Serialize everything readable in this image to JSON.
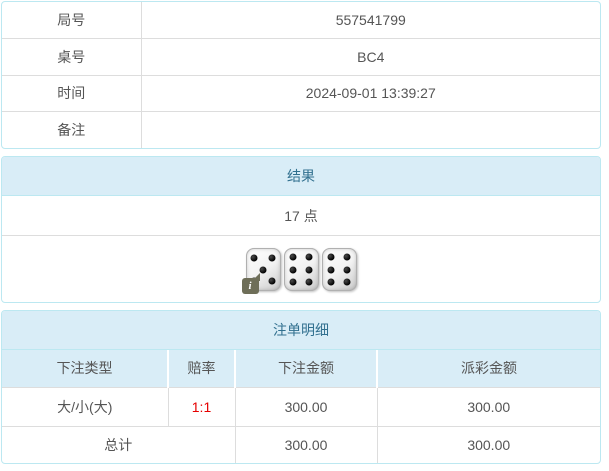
{
  "colors": {
    "panel_border": "#bce8f1",
    "heading_bg": "#d9edf7",
    "heading_text": "#31708f",
    "cell_border": "#dddddd",
    "body_text": "#555555",
    "odds_red": "#e60000",
    "info_badge_bg": "#6e6e58"
  },
  "info_table": {
    "rows": [
      {
        "label": "局号",
        "value": "557541799"
      },
      {
        "label": "桌号",
        "value": "BC4"
      },
      {
        "label": "时间",
        "value": "2024-09-01 13:39:27"
      },
      {
        "label": "备注",
        "value": ""
      }
    ]
  },
  "result_panel": {
    "title": "结果",
    "points": "17 点",
    "dice": [
      5,
      6,
      6
    ],
    "info_icon_glyph": "i"
  },
  "bets_panel": {
    "title": "注单明细",
    "columns": [
      "下注类型",
      "赔率",
      "下注金额",
      "派彩金额"
    ],
    "rows": [
      {
        "type": "大/小(大)",
        "odds": "1:1",
        "bet": "300.00",
        "payout": "300.00"
      }
    ],
    "total": {
      "label": "总计",
      "bet": "300.00",
      "payout": "300.00"
    }
  }
}
